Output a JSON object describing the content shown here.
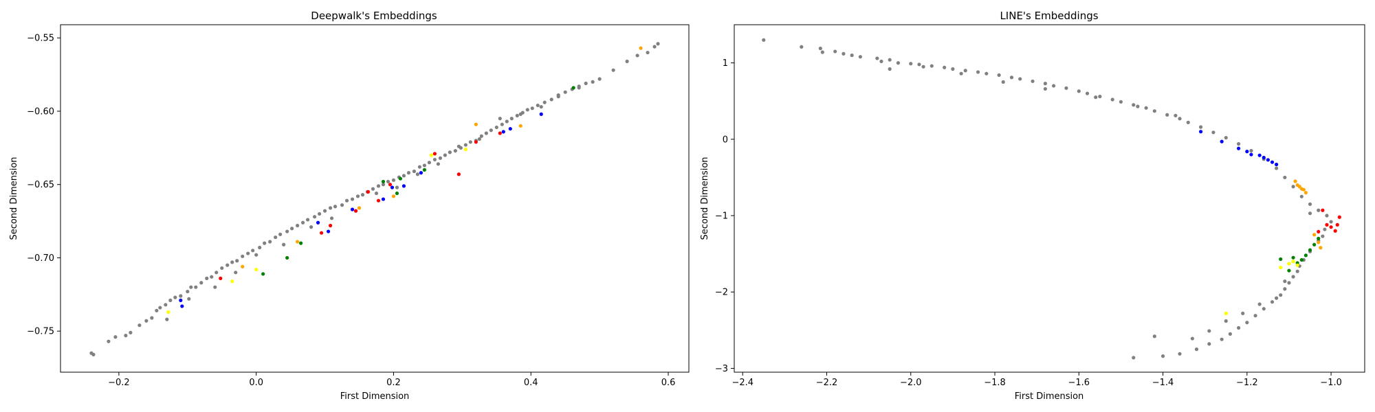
{
  "chart_data": [
    {
      "type": "scatter",
      "title": "Deepwalk's Embeddings",
      "xlabel": "First Dimension",
      "ylabel": "Second Dimension",
      "xlim": [
        -0.285,
        0.63
      ],
      "ylim": [
        -0.778,
        -0.541
      ],
      "xticks": [
        -0.2,
        0.0,
        0.2,
        0.4,
        0.6
      ],
      "xtick_labels": [
        "−0.2",
        "0.0",
        "0.2",
        "0.4",
        "0.6"
      ],
      "yticks": [
        -0.55,
        -0.6,
        -0.65,
        -0.7,
        -0.75
      ],
      "ytick_labels": [
        "−0.55",
        "−0.60",
        "−0.65",
        "−0.70",
        "−0.75"
      ],
      "grid": false,
      "colors": {
        "gray": "#808080",
        "blue": "#0000ff",
        "red": "#ff0000",
        "green": "#008000",
        "orange": "#ffa500",
        "yellow": "#ffff00"
      },
      "series": [
        {
          "color": "gray",
          "x": [
            -0.24,
            -0.237,
            -0.215,
            -0.205,
            -0.19,
            -0.183,
            -0.17,
            -0.16,
            -0.152,
            -0.145,
            -0.14,
            -0.132,
            -0.125,
            -0.118,
            -0.11,
            -0.1,
            -0.095,
            -0.088,
            -0.08,
            -0.072,
            -0.065,
            -0.058,
            -0.05,
            -0.042,
            -0.035,
            -0.028,
            -0.02,
            -0.012,
            -0.005,
            0.005,
            0.012,
            0.02,
            0.028,
            0.035,
            0.045,
            0.052,
            0.06,
            0.068,
            0.075,
            0.085,
            0.092,
            0.1,
            0.108,
            0.115,
            0.125,
            0.132,
            0.14,
            0.148,
            0.155,
            0.162,
            0.17,
            0.178,
            0.185,
            0.192,
            0.2,
            0.208,
            0.215,
            0.222,
            0.23,
            0.238,
            0.245,
            0.252,
            0.26,
            0.268,
            0.275,
            0.282,
            0.29,
            0.298,
            0.305,
            0.312,
            0.32,
            0.328,
            0.335,
            0.342,
            0.35,
            0.358,
            0.365,
            0.372,
            0.38,
            0.388,
            0.395,
            0.402,
            0.41,
            0.42,
            0.43,
            0.44,
            0.45,
            0.46,
            0.47,
            0.48,
            0.49,
            0.5,
            0.52,
            0.54,
            0.555,
            0.57,
            0.58,
            0.585,
            -0.13,
            -0.098,
            -0.06,
            -0.03,
            0.0,
            0.04,
            0.08,
            0.11,
            0.145,
            0.175,
            0.205,
            0.235,
            0.265,
            0.295,
            0.325,
            0.355,
            0.385,
            0.415,
            0.44,
            0.47
          ],
          "y": [
            -0.765,
            -0.766,
            -0.757,
            -0.754,
            -0.753,
            -0.751,
            -0.746,
            -0.743,
            -0.741,
            -0.736,
            -0.734,
            -0.732,
            -0.729,
            -0.727,
            -0.726,
            -0.723,
            -0.72,
            -0.72,
            -0.717,
            -0.714,
            -0.713,
            -0.71,
            -0.707,
            -0.705,
            -0.703,
            -0.702,
            -0.699,
            -0.697,
            -0.695,
            -0.693,
            -0.69,
            -0.689,
            -0.686,
            -0.684,
            -0.682,
            -0.68,
            -0.678,
            -0.676,
            -0.674,
            -0.672,
            -0.67,
            -0.668,
            -0.666,
            -0.665,
            -0.664,
            -0.661,
            -0.66,
            -0.658,
            -0.657,
            -0.655,
            -0.653,
            -0.651,
            -0.65,
            -0.648,
            -0.647,
            -0.645,
            -0.644,
            -0.642,
            -0.641,
            -0.638,
            -0.637,
            -0.635,
            -0.633,
            -0.632,
            -0.63,
            -0.628,
            -0.627,
            -0.625,
            -0.623,
            -0.621,
            -0.62,
            -0.617,
            -0.615,
            -0.613,
            -0.611,
            -0.609,
            -0.607,
            -0.605,
            -0.603,
            -0.601,
            -0.599,
            -0.598,
            -0.596,
            -0.594,
            -0.592,
            -0.59,
            -0.587,
            -0.585,
            -0.583,
            -0.581,
            -0.58,
            -0.578,
            -0.572,
            -0.566,
            -0.562,
            -0.56,
            -0.556,
            -0.554,
            -0.742,
            -0.728,
            -0.72,
            -0.71,
            -0.698,
            -0.691,
            -0.679,
            -0.673,
            -0.668,
            -0.656,
            -0.652,
            -0.643,
            -0.636,
            -0.624,
            -0.619,
            -0.605,
            -0.602,
            -0.597,
            -0.589,
            -0.584
          ]
        },
        {
          "color": "blue",
          "x": [
            -0.11,
            -0.108,
            0.09,
            0.105,
            0.14,
            0.185,
            0.198,
            0.215,
            0.24,
            0.36,
            0.37,
            0.415
          ],
          "y": [
            -0.729,
            -0.733,
            -0.676,
            -0.682,
            -0.667,
            -0.66,
            -0.652,
            -0.651,
            -0.642,
            -0.614,
            -0.612,
            -0.602
          ]
        },
        {
          "color": "red",
          "x": [
            -0.052,
            0.095,
            0.108,
            0.145,
            0.163,
            0.178,
            0.195,
            0.26,
            0.295,
            0.32,
            0.355
          ],
          "y": [
            -0.714,
            -0.683,
            -0.678,
            -0.668,
            -0.655,
            -0.661,
            -0.65,
            -0.629,
            -0.643,
            -0.621,
            -0.615
          ]
        },
        {
          "color": "green",
          "x": [
            0.01,
            0.045,
            0.065,
            0.185,
            0.205,
            0.21,
            0.245,
            0.462
          ],
          "y": [
            -0.711,
            -0.7,
            -0.69,
            -0.648,
            -0.656,
            -0.646,
            -0.64,
            -0.584
          ]
        },
        {
          "color": "orange",
          "x": [
            -0.02,
            0.06,
            0.15,
            0.2,
            0.32,
            0.385,
            0.56
          ],
          "y": [
            -0.706,
            -0.689,
            -0.666,
            -0.658,
            -0.609,
            -0.61,
            -0.557
          ]
        },
        {
          "color": "yellow",
          "x": [
            -0.128,
            -0.035,
            0.0,
            0.255,
            0.305
          ],
          "y": [
            -0.737,
            -0.716,
            -0.708,
            -0.63,
            -0.626
          ]
        }
      ]
    },
    {
      "type": "scatter",
      "title": "LINE's Embeddings",
      "xlabel": "First Dimension",
      "ylabel": "Second Dimension",
      "xlim": [
        -2.42,
        -0.92
      ],
      "ylim": [
        -3.05,
        1.5
      ],
      "xticks": [
        -2.4,
        -2.2,
        -2.0,
        -1.8,
        -1.6,
        -1.4,
        -1.2,
        -1.0
      ],
      "xtick_labels": [
        "−2.4",
        "−2.2",
        "−2.0",
        "−1.8",
        "−1.6",
        "−1.4",
        "−1.2",
        "−1.0"
      ],
      "yticks": [
        1,
        0,
        -1,
        -2,
        -3
      ],
      "ytick_labels": [
        "1",
        "0",
        "−1",
        "−2",
        "−3"
      ],
      "grid": false,
      "colors": {
        "gray": "#808080",
        "blue": "#0000ff",
        "red": "#ff0000",
        "green": "#008000",
        "orange": "#ffa500",
        "yellow": "#ffff00"
      },
      "series": [
        {
          "color": "gray",
          "x": [
            -2.35,
            -2.26,
            -2.215,
            -2.21,
            -2.18,
            -2.16,
            -2.14,
            -2.12,
            -2.08,
            -2.07,
            -2.05,
            -2.03,
            -2.0,
            -1.98,
            -1.95,
            -1.92,
            -1.9,
            -1.87,
            -1.84,
            -1.82,
            -1.79,
            -1.76,
            -1.74,
            -1.71,
            -1.68,
            -1.66,
            -1.63,
            -1.6,
            -1.58,
            -1.55,
            -1.52,
            -1.5,
            -1.47,
            -1.44,
            -1.42,
            -1.39,
            -1.36,
            -1.34,
            -1.31,
            -1.28,
            -1.25,
            -1.22,
            -1.19,
            -1.16,
            -1.13,
            -1.11,
            -1.09,
            -1.07,
            -1.05,
            -1.03,
            -1.01,
            -1.0,
            -1.015,
            -1.03,
            -1.05,
            -1.065,
            -1.075,
            -1.08,
            -1.09,
            -1.1,
            -1.11,
            -1.12,
            -1.14,
            -1.16,
            -1.18,
            -1.2,
            -1.22,
            -1.24,
            -1.26,
            -1.29,
            -1.32,
            -1.36,
            -1.4,
            -1.47,
            -1.42,
            -1.29,
            -1.05,
            -1.02,
            -1.11,
            -1.13,
            -1.17,
            -1.21,
            -1.25,
            -1.33,
            -2.05,
            -1.97,
            -1.88,
            -1.78,
            -1.68,
            -1.56,
            -1.46,
            -1.37
          ],
          "y": [
            1.3,
            1.21,
            1.19,
            1.14,
            1.15,
            1.12,
            1.1,
            1.08,
            1.06,
            1.02,
            1.04,
            1.0,
            0.99,
            0.98,
            0.96,
            0.94,
            0.92,
            0.9,
            0.88,
            0.86,
            0.84,
            0.81,
            0.79,
            0.76,
            0.73,
            0.7,
            0.67,
            0.63,
            0.6,
            0.56,
            0.52,
            0.49,
            0.45,
            0.41,
            0.37,
            0.32,
            0.27,
            0.22,
            0.16,
            0.09,
            0.02,
            -0.06,
            -0.15,
            -0.26,
            -0.38,
            -0.5,
            -0.62,
            -0.75,
            -0.85,
            -0.93,
            -1.0,
            -1.08,
            -1.18,
            -1.33,
            -1.47,
            -1.58,
            -1.66,
            -1.73,
            -1.8,
            -1.88,
            -1.96,
            -2.04,
            -2.13,
            -2.22,
            -2.31,
            -2.4,
            -2.47,
            -2.55,
            -2.62,
            -2.68,
            -2.75,
            -2.81,
            -2.84,
            -2.86,
            -2.58,
            -2.51,
            -0.97,
            -1.27,
            -1.86,
            -2.08,
            -2.16,
            -2.28,
            -2.38,
            -2.61,
            0.92,
            0.95,
            0.86,
            0.75,
            0.66,
            0.55,
            0.43,
            0.31
          ]
        },
        {
          "color": "blue",
          "x": [
            -1.31,
            -1.26,
            -1.22,
            -1.2,
            -1.19,
            -1.17,
            -1.16,
            -1.15,
            -1.14,
            -1.13
          ],
          "y": [
            0.1,
            -0.03,
            -0.12,
            -0.16,
            -0.2,
            -0.21,
            -0.24,
            -0.27,
            -0.3,
            -0.33
          ]
        },
        {
          "color": "red",
          "x": [
            -1.02,
            -1.01,
            -1.0,
            -0.99,
            -0.985,
            -0.98,
            -1.03
          ],
          "y": [
            -0.93,
            -1.12,
            -1.15,
            -1.2,
            -1.12,
            -1.02,
            -1.21
          ]
        },
        {
          "color": "green",
          "x": [
            -1.1,
            -1.09,
            -1.08,
            -1.07,
            -1.06,
            -1.05,
            -1.04,
            -1.03,
            -1.12
          ],
          "y": [
            -1.72,
            -1.55,
            -1.62,
            -1.58,
            -1.52,
            -1.45,
            -1.38,
            -1.3,
            -1.57
          ]
        },
        {
          "color": "orange",
          "x": [
            -1.085,
            -1.08,
            -1.075,
            -1.07,
            -1.065,
            -1.06,
            -1.04,
            -1.03,
            -1.025
          ],
          "y": [
            -0.55,
            -0.6,
            -0.62,
            -0.65,
            -0.66,
            -0.7,
            -1.25,
            -1.35,
            -1.42
          ]
        },
        {
          "color": "yellow",
          "x": [
            -1.12,
            -1.1,
            -1.09,
            -1.08,
            -1.25
          ],
          "y": [
            -1.68,
            -1.63,
            -1.6,
            -1.65,
            -2.28
          ]
        }
      ]
    }
  ]
}
